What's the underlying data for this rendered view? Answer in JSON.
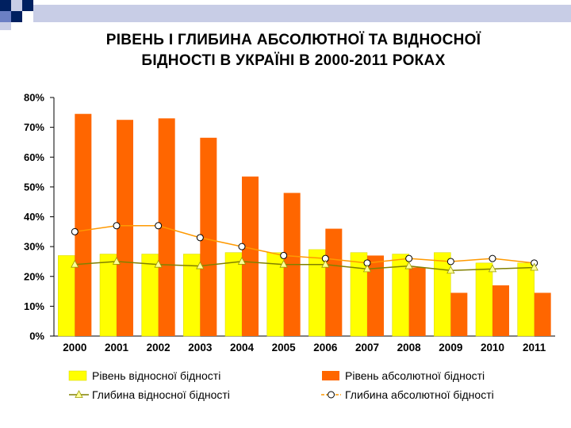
{
  "colors": {
    "deco_dark": "#002060",
    "deco_blue": "#6b7fc4",
    "deco_light": "#c8cde6",
    "bar_relative": "#ffff00",
    "bar_absolute": "#ff6600",
    "line_relative": "#808000",
    "line_absolute": "#ff9900"
  },
  "title": {
    "line1": "РІВЕНЬ І ГЛИБИНА АБСОЛЮТНОЇ ТА ВІДНОСНОЇ",
    "line2": "БІДНОСТІ В УКРАЇНІ В 2000-2011 РОКАХ"
  },
  "chart_data": {
    "type": "bar",
    "categories": [
      "2000",
      "2001",
      "2002",
      "2003",
      "2004",
      "2005",
      "2006",
      "2007",
      "2008",
      "2009",
      "2010",
      "2011"
    ],
    "ylim": [
      0,
      80
    ],
    "yticks": [
      "0%",
      "10%",
      "20%",
      "30%",
      "40%",
      "50%",
      "60%",
      "70%",
      "80%"
    ],
    "grid": false,
    "legend_position": "bottom",
    "series": [
      {
        "name": "Рівень відносної бідності",
        "kind": "bar",
        "values": [
          27,
          27.5,
          27.5,
          27.5,
          28,
          28,
          29,
          28,
          27.5,
          28,
          24.5,
          24.5
        ]
      },
      {
        "name": "Рівень абсолютної бідності",
        "kind": "bar",
        "values": [
          74.5,
          72.5,
          73,
          66.5,
          53.5,
          48,
          36,
          27,
          23,
          14.5,
          17,
          14.5
        ]
      },
      {
        "name": "Глибина відносної бідності",
        "kind": "line",
        "marker": "triangle",
        "values": [
          24,
          25,
          24,
          23.5,
          25,
          24,
          24,
          22.5,
          23.5,
          22,
          22.5,
          23
        ]
      },
      {
        "name": "Глибина абсолютної бідності",
        "kind": "line",
        "marker": "circle",
        "values": [
          35,
          37,
          37,
          33,
          30,
          27,
          26,
          24.5,
          26,
          25,
          26,
          24.5
        ]
      }
    ]
  }
}
